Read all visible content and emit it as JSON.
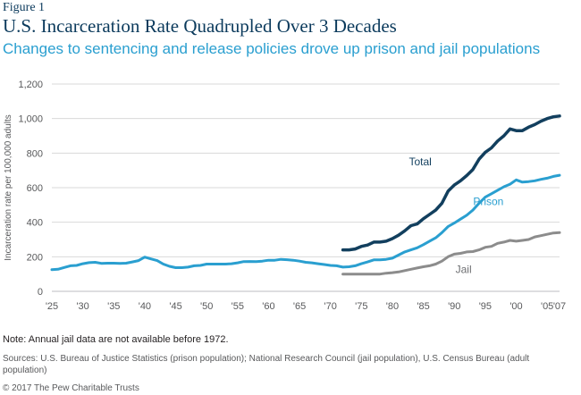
{
  "figure_label": "Figure 1",
  "title": "U.S. Incarceration Rate Quadrupled Over 3 Decades",
  "subtitle": "Changes to sentencing and release policies drove up prison and jail populations",
  "note": "Note: Annual jail data are not available before 1972.",
  "sources": "Sources: U.S. Bureau of Justice Statistics (prison population); National Research Council (jail population), U.S. Census Bureau (adult population)",
  "copyright": "© 2017 The Pew Charitable Trusts",
  "colors": {
    "total": "#123f5e",
    "prison": "#2a9fd0",
    "jail": "#8c8c8c",
    "grid": "#d9d9d9"
  },
  "chart_data": {
    "type": "line",
    "ylabel": "Incarceration rate per 100,000 adults",
    "ylim": [
      0,
      1200
    ],
    "yticks": [
      0,
      200,
      400,
      600,
      800,
      1000,
      1200
    ],
    "ytick_labels": [
      "0",
      "200",
      "400",
      "600",
      "800",
      "1,000",
      "1,200"
    ],
    "xlim": [
      1925,
      2007
    ],
    "xticks": [
      1925,
      1930,
      1935,
      1940,
      1945,
      1950,
      1955,
      1960,
      1965,
      1970,
      1975,
      1980,
      1985,
      1990,
      1995,
      2000,
      2005,
      2007
    ],
    "xtick_labels": [
      "'25",
      "'30",
      "'35",
      "'40",
      "'45",
      "'50",
      "'55",
      "'60",
      "'65",
      "'70",
      "'75",
      "'80",
      "'85",
      "'90",
      "'95",
      "'00",
      "'05",
      "'07"
    ],
    "grid": true,
    "series": [
      {
        "name": "Total",
        "key": "total",
        "x": [
          1972,
          1973,
          1974,
          1975,
          1976,
          1977,
          1978,
          1979,
          1980,
          1981,
          1982,
          1983,
          1984,
          1985,
          1986,
          1987,
          1988,
          1989,
          1990,
          1991,
          1992,
          1993,
          1994,
          1995,
          1996,
          1997,
          1998,
          1999,
          2000,
          2001,
          2002,
          2003,
          2004,
          2005,
          2006,
          2007
        ],
        "values": [
          240,
          240,
          245,
          260,
          268,
          285,
          285,
          290,
          305,
          325,
          350,
          380,
          390,
          420,
          445,
          470,
          510,
          580,
          615,
          640,
          670,
          705,
          765,
          805,
          830,
          870,
          900,
          940,
          930,
          930,
          950,
          965,
          985,
          1000,
          1010,
          1015
        ]
      },
      {
        "name": "Prison",
        "key": "prison",
        "x": [
          1925,
          1926,
          1927,
          1928,
          1929,
          1930,
          1931,
          1932,
          1933,
          1934,
          1935,
          1936,
          1937,
          1938,
          1939,
          1940,
          1941,
          1942,
          1943,
          1944,
          1945,
          1946,
          1947,
          1948,
          1949,
          1950,
          1951,
          1952,
          1953,
          1954,
          1955,
          1956,
          1957,
          1958,
          1959,
          1960,
          1961,
          1962,
          1963,
          1964,
          1965,
          1966,
          1967,
          1968,
          1969,
          1970,
          1971,
          1972,
          1973,
          1974,
          1975,
          1976,
          1977,
          1978,
          1979,
          1980,
          1981,
          1982,
          1983,
          1984,
          1985,
          1986,
          1987,
          1988,
          1989,
          1990,
          1991,
          1992,
          1993,
          1994,
          1995,
          1996,
          1997,
          1998,
          1999,
          2000,
          2001,
          2002,
          2003,
          2004,
          2005,
          2006,
          2007
        ],
        "values": [
          125,
          128,
          138,
          148,
          150,
          160,
          166,
          168,
          162,
          163,
          163,
          162,
          163,
          170,
          178,
          198,
          188,
          178,
          158,
          145,
          137,
          137,
          140,
          148,
          150,
          158,
          158,
          158,
          158,
          160,
          165,
          172,
          173,
          172,
          175,
          180,
          180,
          185,
          183,
          180,
          175,
          168,
          165,
          160,
          155,
          150,
          148,
          140,
          142,
          148,
          160,
          170,
          182,
          182,
          185,
          192,
          210,
          228,
          240,
          252,
          270,
          290,
          310,
          340,
          375,
          395,
          418,
          440,
          470,
          510,
          545,
          565,
          585,
          605,
          620,
          645,
          632,
          635,
          640,
          648,
          655,
          665,
          672
        ]
      },
      {
        "name": "Jail",
        "key": "jail",
        "x": [
          1972,
          1973,
          1974,
          1975,
          1976,
          1977,
          1978,
          1979,
          1980,
          1981,
          1982,
          1983,
          1984,
          1985,
          1986,
          1987,
          1988,
          1989,
          1990,
          1991,
          1992,
          1993,
          1994,
          1995,
          1996,
          1997,
          1998,
          1999,
          2000,
          2001,
          2002,
          2003,
          2004,
          2005,
          2006,
          2007
        ],
        "values": [
          100,
          100,
          100,
          100,
          100,
          100,
          100,
          105,
          108,
          112,
          120,
          128,
          135,
          142,
          148,
          158,
          175,
          200,
          215,
          220,
          228,
          230,
          240,
          255,
          260,
          278,
          285,
          295,
          290,
          295,
          300,
          315,
          322,
          330,
          338,
          340
        ]
      }
    ]
  }
}
